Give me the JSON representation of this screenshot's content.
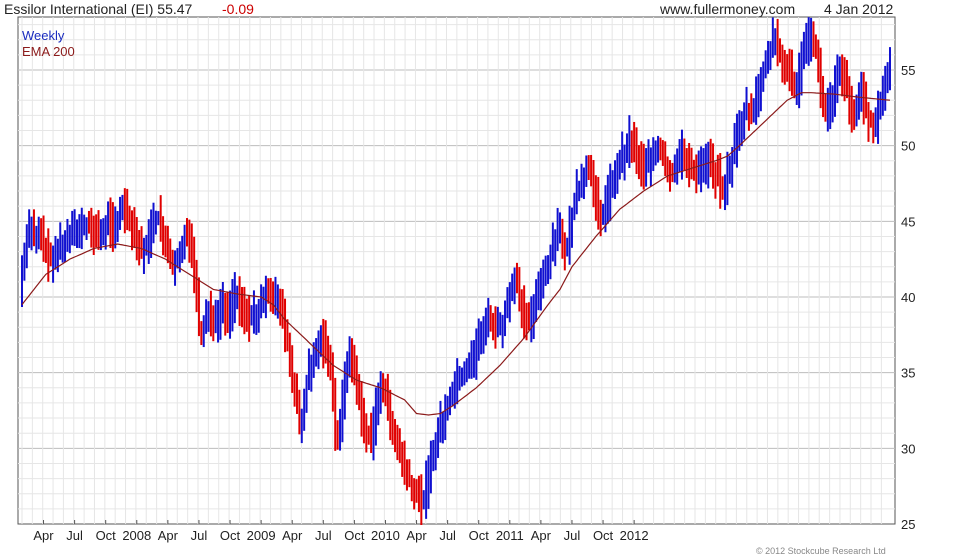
{
  "header": {
    "title": "Essilor International (EI) 55.47",
    "change": "-0.09",
    "site": "www.fullermoney.com",
    "date": "4 Jan 2012"
  },
  "legend": {
    "weekly": "Weekly",
    "ema": "EMA 200"
  },
  "footer": {
    "copyright": "© 2012 Stockcube Research Ltd"
  },
  "colors": {
    "up": "#1010d0",
    "down": "#e00000",
    "ema": "#8b1a1a",
    "grid": "#d8d8d8"
  },
  "chart_data": {
    "type": "line",
    "xlabels": [
      "Apr",
      "Jul",
      "Oct",
      "2008",
      "Apr",
      "Jul",
      "Oct",
      "2009",
      "Apr",
      "Jul",
      "Oct",
      "2010",
      "Apr",
      "Jul",
      "Oct",
      "2011",
      "Apr",
      "Jul",
      "Oct",
      "2012"
    ],
    "ylim": [
      25,
      58.5
    ],
    "yticks": [
      25,
      30,
      35,
      40,
      45,
      50,
      55
    ],
    "grid": true,
    "price": [
      [
        0,
        41
      ],
      [
        2,
        43.5
      ],
      [
        4,
        44.5
      ],
      [
        6,
        44
      ],
      [
        8,
        44.8
      ],
      [
        10,
        43
      ],
      [
        12,
        42.5
      ],
      [
        15,
        43
      ],
      [
        18,
        43.5
      ],
      [
        21,
        44
      ],
      [
        24,
        44.5
      ],
      [
        27,
        44.8
      ],
      [
        30,
        44.5
      ],
      [
        33,
        44
      ],
      [
        36,
        45
      ],
      [
        39,
        44.5
      ],
      [
        42,
        46
      ],
      [
        45,
        45
      ],
      [
        48,
        43.5
      ],
      [
        51,
        43
      ],
      [
        54,
        44
      ],
      [
        57,
        45.5
      ],
      [
        60,
        44
      ],
      [
        63,
        42
      ],
      [
        66,
        43
      ],
      [
        69,
        44
      ],
      [
        72,
        42.5
      ],
      [
        75,
        37
      ],
      [
        78,
        39
      ],
      [
        81,
        38
      ],
      [
        84,
        39.5
      ],
      [
        87,
        38.5
      ],
      [
        90,
        40.5
      ],
      [
        93,
        39
      ],
      [
        96,
        38.5
      ],
      [
        99,
        39
      ],
      [
        102,
        40.5
      ],
      [
        105,
        39.5
      ],
      [
        108,
        40
      ],
      [
        111,
        37.5
      ],
      [
        114,
        34
      ],
      [
        117,
        31.5
      ],
      [
        120,
        35
      ],
      [
        123,
        36.5
      ],
      [
        126,
        37
      ],
      [
        129,
        36
      ],
      [
        132,
        30
      ],
      [
        135,
        34
      ],
      [
        138,
        36.5
      ],
      [
        141,
        33.5
      ],
      [
        144,
        31
      ],
      [
        147,
        30.5
      ],
      [
        150,
        34.5
      ],
      [
        153,
        33
      ],
      [
        156,
        31
      ],
      [
        159,
        29.5
      ],
      [
        162,
        28
      ],
      [
        165,
        27
      ],
      [
        168,
        26.5
      ],
      [
        171,
        28.5
      ],
      [
        174,
        31
      ],
      [
        177,
        32
      ],
      [
        180,
        33.5
      ],
      [
        183,
        34.5
      ],
      [
        186,
        35
      ],
      [
        189,
        35.8
      ],
      [
        192,
        37.5
      ],
      [
        195,
        38.5
      ],
      [
        198,
        38
      ],
      [
        201,
        38
      ],
      [
        204,
        40
      ],
      [
        207,
        41
      ],
      [
        210,
        39
      ],
      [
        213,
        38.5
      ],
      [
        216,
        40
      ],
      [
        219,
        41.5
      ],
      [
        222,
        43
      ],
      [
        225,
        44.5
      ],
      [
        228,
        43
      ],
      [
        231,
        46
      ],
      [
        234,
        47.5
      ],
      [
        237,
        48.5
      ],
      [
        240,
        47
      ],
      [
        243,
        45
      ],
      [
        246,
        47
      ],
      [
        249,
        48.5
      ],
      [
        252,
        49.5
      ],
      [
        255,
        50.5
      ],
      [
        258,
        49
      ],
      [
        261,
        48.5
      ],
      [
        264,
        49.5
      ],
      [
        267,
        50
      ],
      [
        270,
        48.5
      ],
      [
        273,
        48
      ],
      [
        276,
        49.5
      ],
      [
        279,
        49
      ],
      [
        282,
        48
      ],
      [
        285,
        48.5
      ],
      [
        288,
        49
      ],
      [
        291,
        48
      ],
      [
        294,
        47
      ],
      [
        297,
        49
      ],
      [
        300,
        51
      ],
      [
        303,
        52.5
      ],
      [
        306,
        52
      ],
      [
        309,
        54
      ],
      [
        312,
        56
      ],
      [
        315,
        57
      ],
      [
        318,
        56
      ],
      [
        321,
        55
      ],
      [
        324,
        53.5
      ],
      [
        327,
        56
      ],
      [
        330,
        57
      ],
      [
        333,
        56
      ],
      [
        336,
        52
      ],
      [
        339,
        53
      ],
      [
        342,
        55.5
      ],
      [
        345,
        54
      ],
      [
        348,
        52
      ],
      [
        351,
        53.5
      ],
      [
        354,
        52
      ],
      [
        357,
        51.5
      ],
      [
        360,
        53
      ],
      [
        363,
        55.47
      ]
    ],
    "ema": [
      [
        0,
        39.5
      ],
      [
        10,
        41.5
      ],
      [
        20,
        42.5
      ],
      [
        30,
        43.2
      ],
      [
        40,
        43.5
      ],
      [
        50,
        43.2
      ],
      [
        60,
        42.5
      ],
      [
        70,
        41.5
      ],
      [
        80,
        40.5
      ],
      [
        90,
        40.2
      ],
      [
        100,
        40
      ],
      [
        105,
        39.5
      ],
      [
        110,
        38.5
      ],
      [
        120,
        37
      ],
      [
        130,
        35.5
      ],
      [
        140,
        34.5
      ],
      [
        150,
        34
      ],
      [
        160,
        33.2
      ],
      [
        165,
        32.3
      ],
      [
        170,
        32.2
      ],
      [
        175,
        32.3
      ],
      [
        180,
        32.8
      ],
      [
        190,
        34
      ],
      [
        200,
        35.5
      ],
      [
        210,
        37.3
      ],
      [
        220,
        39.5
      ],
      [
        225,
        40.5
      ],
      [
        230,
        42
      ],
      [
        240,
        44
      ],
      [
        250,
        45.8
      ],
      [
        260,
        47
      ],
      [
        270,
        48
      ],
      [
        280,
        48.5
      ],
      [
        290,
        49
      ],
      [
        295,
        49.3
      ],
      [
        300,
        50
      ],
      [
        310,
        51.5
      ],
      [
        320,
        53
      ],
      [
        326,
        53.5
      ],
      [
        330,
        53.5
      ],
      [
        340,
        53.4
      ],
      [
        350,
        53.2
      ],
      [
        363,
        53
      ]
    ],
    "series": [
      {
        "name": "Weekly",
        "kind": "price"
      },
      {
        "name": "EMA 200",
        "kind": "ema"
      }
    ]
  }
}
